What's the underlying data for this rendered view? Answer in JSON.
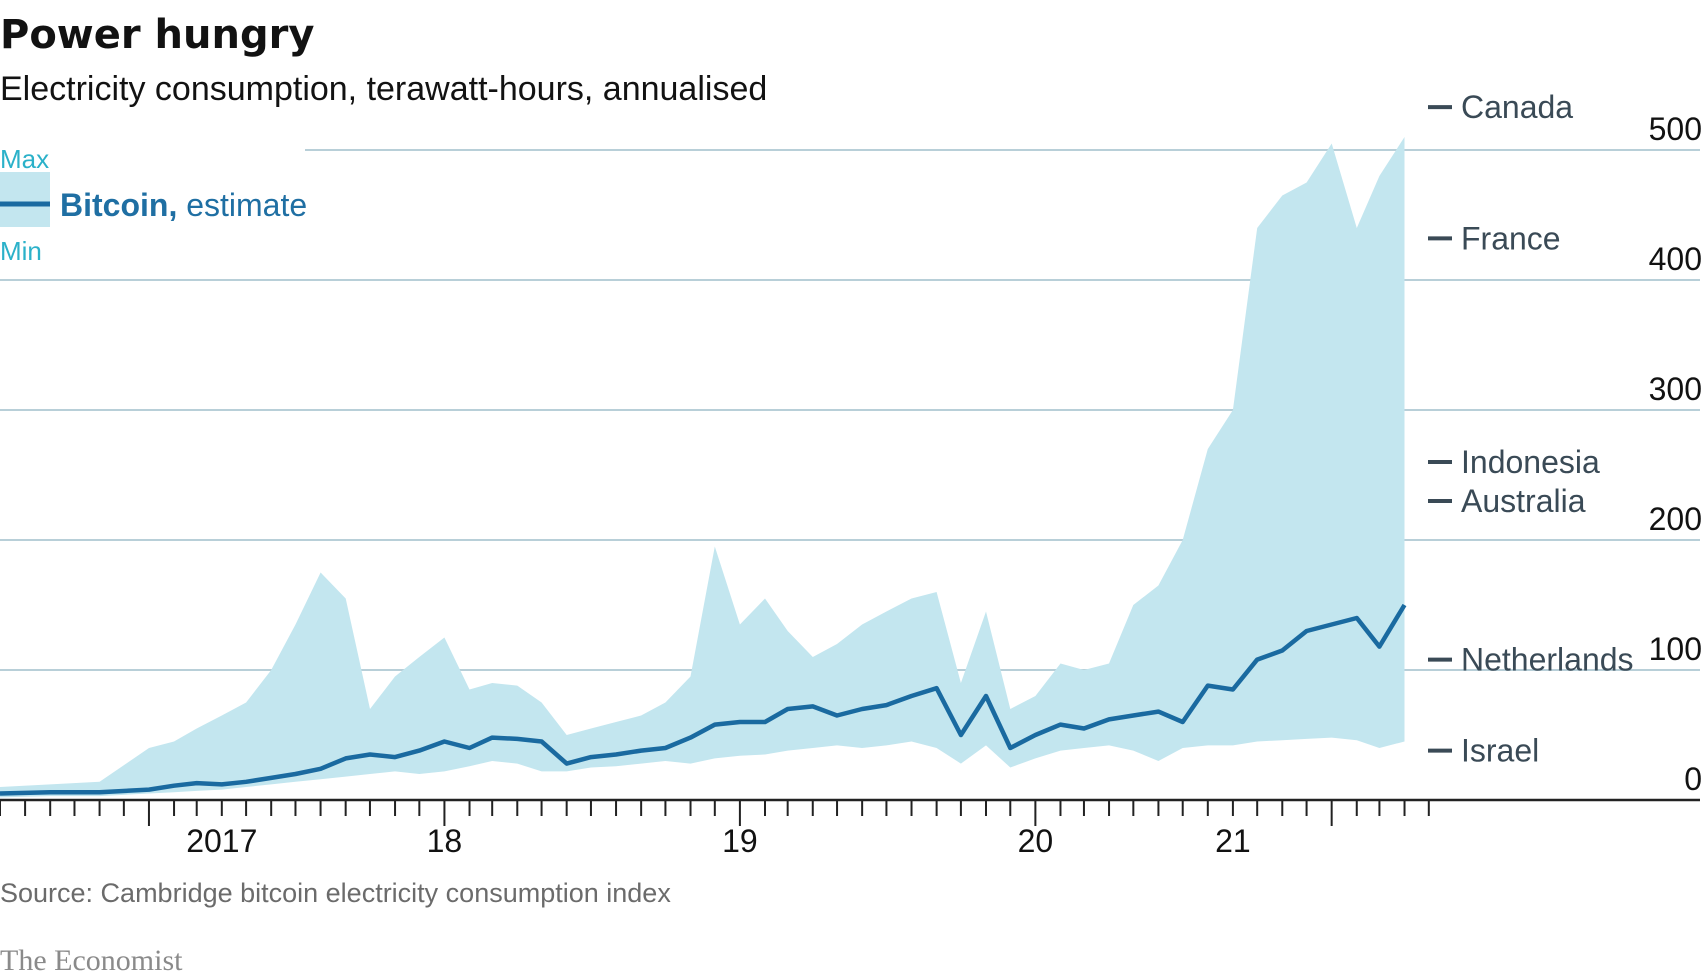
{
  "chart_data": {
    "type": "area",
    "title": "Power hungry",
    "subtitle": "Electricity consumption, terawatt-hours, annualised",
    "ylim": [
      0,
      500
    ],
    "yticks": [
      0,
      100,
      200,
      300,
      400,
      500
    ],
    "xlim": [
      "2016-07-01",
      "2022-04-01"
    ],
    "xtick_labels": [
      {
        "date": "2017-04-01",
        "label": "2017"
      },
      {
        "date": "2018-01-01",
        "label": "18"
      },
      {
        "date": "2019-01-01",
        "label": "19"
      },
      {
        "date": "2020-01-01",
        "label": "20"
      },
      {
        "date": "2020-09-01",
        "label": "21"
      }
    ],
    "grid": true,
    "legend": {
      "position": "top-left",
      "max_label": "Max",
      "min_label": "Min",
      "series_bold": "Bitcoin,",
      "series_rest": " estimate"
    },
    "colors": {
      "band": "#c3e6ef",
      "line": "#1a6aa0",
      "grid": "#b8cfd8",
      "reference": "#3a4a56",
      "axis": "#222222"
    },
    "reference_lines": [
      {
        "label": "Canada",
        "value": 533
      },
      {
        "label": "France",
        "value": 432
      },
      {
        "label": "Indonesia",
        "value": 260
      },
      {
        "label": "Australia",
        "value": 230
      },
      {
        "label": "Netherlands",
        "value": 108
      },
      {
        "label": "Israel",
        "value": 38
      }
    ],
    "series": [
      {
        "kind": "line",
        "x": [
          "2016-07-01",
          "2016-09-01",
          "2016-11-01",
          "2017-01-01",
          "2017-02-01",
          "2017-03-01",
          "2017-04-01",
          "2017-05-01",
          "2017-06-01",
          "2017-07-01",
          "2017-08-01",
          "2017-09-01",
          "2017-10-01",
          "2017-11-01",
          "2017-12-01",
          "2018-01-01",
          "2018-02-01",
          "2018-03-01",
          "2018-04-01",
          "2018-05-01",
          "2018-06-01",
          "2018-07-01",
          "2018-08-01",
          "2018-09-01",
          "2018-10-01",
          "2018-11-01",
          "2018-12-01",
          "2019-01-01",
          "2019-02-01",
          "2019-03-01",
          "2019-04-01",
          "2019-05-01",
          "2019-06-01",
          "2019-07-01",
          "2019-08-01",
          "2019-09-01",
          "2019-10-01",
          "2019-11-01",
          "2019-12-01",
          "2020-01-01",
          "2020-02-01",
          "2020-03-01",
          "2020-04-01",
          "2020-05-01",
          "2020-06-01",
          "2020-07-01",
          "2020-08-01",
          "2020-09-01",
          "2020-10-01",
          "2020-11-01",
          "2020-12-01",
          "2021-01-01",
          "2021-02-01",
          "2021-03-01",
          "2021-04-01"
        ],
        "y": [
          5,
          6,
          6,
          8,
          11,
          13,
          12,
          14,
          17,
          20,
          24,
          32,
          35,
          33,
          38,
          45,
          40,
          48,
          47,
          45,
          28,
          33,
          35,
          38,
          40,
          48,
          58,
          60,
          60,
          70,
          72,
          65,
          70,
          73,
          80,
          86,
          50,
          80,
          40,
          50,
          58,
          55,
          62,
          65,
          68,
          60,
          88,
          85,
          108,
          115,
          130,
          135,
          140,
          118,
          150
        ]
      },
      {
        "kind": "band",
        "x": [
          "2016-07-01",
          "2016-09-01",
          "2016-11-01",
          "2017-01-01",
          "2017-02-01",
          "2017-03-01",
          "2017-04-01",
          "2017-05-01",
          "2017-06-01",
          "2017-07-01",
          "2017-08-01",
          "2017-09-01",
          "2017-10-01",
          "2017-11-01",
          "2017-12-01",
          "2018-01-01",
          "2018-02-01",
          "2018-03-01",
          "2018-04-01",
          "2018-05-01",
          "2018-06-01",
          "2018-07-01",
          "2018-08-01",
          "2018-09-01",
          "2018-10-01",
          "2018-11-01",
          "2018-12-01",
          "2019-01-01",
          "2019-02-01",
          "2019-03-01",
          "2019-04-01",
          "2019-05-01",
          "2019-06-01",
          "2019-07-01",
          "2019-08-01",
          "2019-09-01",
          "2019-10-01",
          "2019-11-01",
          "2019-12-01",
          "2020-01-01",
          "2020-02-01",
          "2020-03-01",
          "2020-04-01",
          "2020-05-01",
          "2020-06-01",
          "2020-07-01",
          "2020-08-01",
          "2020-09-01",
          "2020-10-01",
          "2020-11-01",
          "2020-12-01",
          "2021-01-01",
          "2021-02-01",
          "2021-03-01",
          "2021-04-01"
        ],
        "max": [
          10,
          12,
          14,
          40,
          45,
          55,
          65,
          75,
          100,
          135,
          175,
          155,
          70,
          95,
          110,
          125,
          85,
          90,
          88,
          75,
          50,
          55,
          60,
          65,
          75,
          95,
          195,
          135,
          155,
          130,
          110,
          120,
          135,
          145,
          155,
          160,
          90,
          145,
          70,
          80,
          105,
          100,
          105,
          150,
          165,
          200,
          270,
          300,
          440,
          465,
          475,
          505,
          440,
          480,
          510
        ],
        "min": [
          2,
          3,
          3,
          5,
          6,
          7,
          8,
          10,
          12,
          14,
          16,
          18,
          20,
          22,
          20,
          22,
          26,
          30,
          28,
          22,
          22,
          25,
          26,
          28,
          30,
          28,
          32,
          34,
          35,
          38,
          40,
          42,
          40,
          42,
          45,
          40,
          28,
          42,
          25,
          32,
          38,
          40,
          42,
          38,
          30,
          40,
          42,
          42,
          45,
          46,
          47,
          48,
          46,
          40,
          45
        ]
      }
    ]
  },
  "footer": {
    "source": "Source: Cambridge bitcoin electricity consumption index",
    "brand": "The Economist"
  }
}
